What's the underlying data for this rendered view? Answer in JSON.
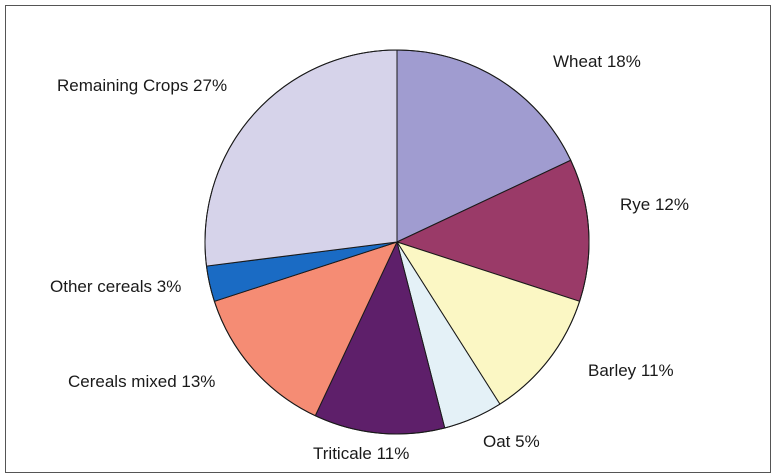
{
  "chart_data": {
    "type": "pie",
    "title": "",
    "start_angle_deg": 0,
    "direction": "clockwise",
    "slices": [
      {
        "label": "Wheat 18%",
        "value": 18,
        "color": "#a09cd0"
      },
      {
        "label": "Rye 12%",
        "value": 12,
        "color": "#9a3a68"
      },
      {
        "label": "Barley 11%",
        "value": 11,
        "color": "#fbf7c4"
      },
      {
        "label": "Oat 5%",
        "value": 5,
        "color": "#e4f1f7"
      },
      {
        "label": "Triticale 11%",
        "value": 11,
        "color": "#5e1f6a"
      },
      {
        "label": "Cereals mixed 13%",
        "value": 13,
        "color": "#f58c74"
      },
      {
        "label": "Other cereals 3%",
        "value": 3,
        "color": "#1a6bc4"
      },
      {
        "label": "Remaining Crops 27%",
        "value": 27,
        "color": "#d6d3ea"
      }
    ]
  }
}
